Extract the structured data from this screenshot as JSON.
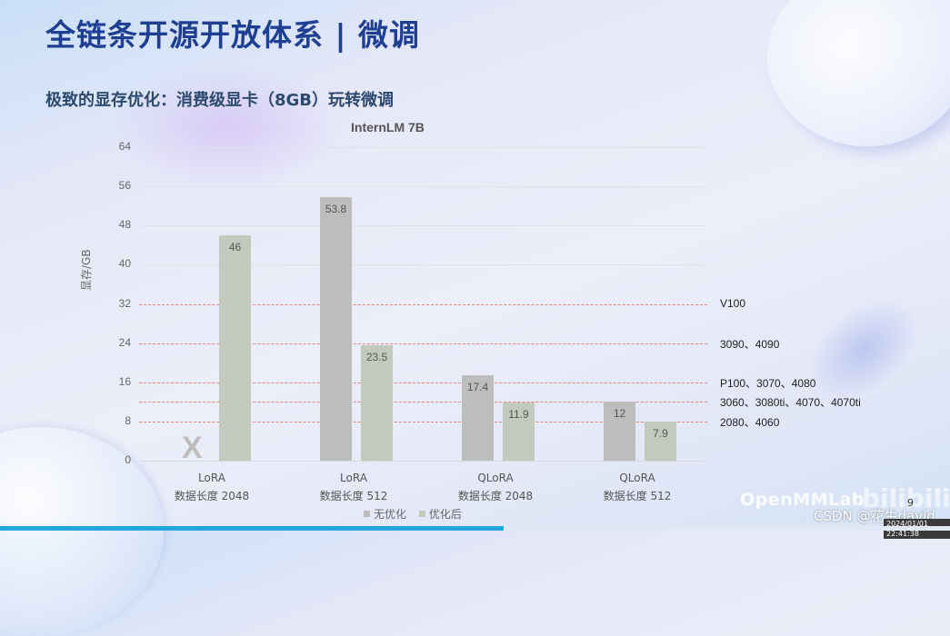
{
  "slide": {
    "title": "全链条开源开放体系 | 微调",
    "subtitle": "极致的显存优化：消费级显卡（8GB）玩转微调",
    "page_number": "9"
  },
  "watermarks": {
    "openmmlab": "OpenMMLab",
    "bilibili": "bilibili",
    "csdn": "CSDN @花生david",
    "timestamp": "2024/01/01 22:41:38"
  },
  "progress": {
    "percent": 53
  },
  "chart_data": {
    "type": "bar",
    "title": "InternLM 7B",
    "xlabel": "",
    "ylabel": "显存/GB",
    "ylim": [
      0,
      64
    ],
    "yticks": [
      0,
      8,
      16,
      24,
      32,
      40,
      48,
      56,
      64
    ],
    "grid": true,
    "legend_position": "bottom",
    "categories": [
      {
        "line1": "LoRA",
        "line2": "数据长度 2048"
      },
      {
        "line1": "LoRA",
        "line2": "数据长度 512"
      },
      {
        "line1": "QLoRA",
        "line2": "数据长度 2048"
      },
      {
        "line1": "QLoRA",
        "line2": "数据长度 512"
      }
    ],
    "series": [
      {
        "name": "无优化",
        "color": "#bdbdbd",
        "values": [
          null,
          53.8,
          17.4,
          12
        ],
        "labels": [
          "",
          "53.8",
          "17.4",
          "12"
        ]
      },
      {
        "name": "优化后",
        "color": "#c3c9bd",
        "values": [
          46,
          23.5,
          11.9,
          7.9
        ],
        "labels": [
          "46",
          "23.5",
          "11.9",
          "7.9"
        ]
      }
    ],
    "annotations": {
      "out_of_memory_mark": "X",
      "reference_lines": [
        {
          "value": 32,
          "label": "V100"
        },
        {
          "value": 24,
          "label": "3090、4090"
        },
        {
          "value": 16,
          "label": "P100、3070、4080"
        },
        {
          "value": 12,
          "label": "3060、3080ti、4070、4070ti"
        },
        {
          "value": 8,
          "label": "2080、4060"
        }
      ]
    }
  }
}
